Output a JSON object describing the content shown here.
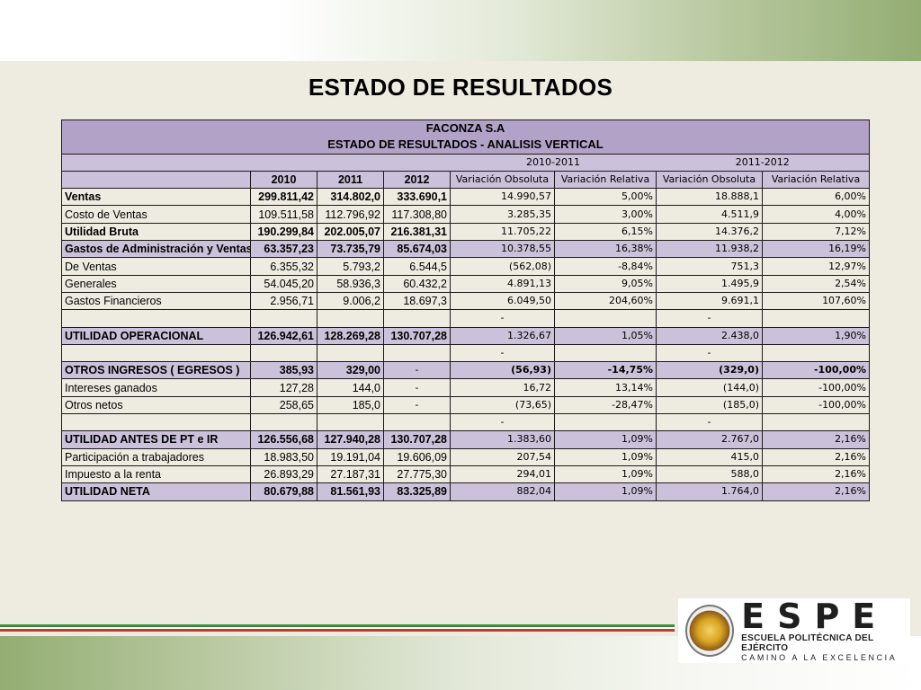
{
  "slide_title": "ESTADO DE RESULTADOS",
  "company": "FACONZA S.A",
  "report_title": "ESTADO DE RESULTADOS - ANALISIS VERTICAL",
  "periods": [
    "2010-2011",
    "2011-2012"
  ],
  "columns": {
    "years": [
      "2010",
      "2011",
      "2012"
    ],
    "var_abs": "Variación Obsoluta",
    "var_rel": "Variación Relativa"
  },
  "rows": [
    {
      "label": "Ventas",
      "v2010": "299.811,42",
      "v2011": "314.802,0",
      "v2012": "333.690,1",
      "abs1": "14.990,57",
      "rel1": "5,00%",
      "abs2": "18.888,1",
      "rel2": "6,00%"
    },
    {
      "label": "Costo de Ventas",
      "v2010": "109.511,58",
      "v2011": "112.796,92",
      "v2012": "117.308,80",
      "abs1": "3.285,35",
      "rel1": "3,00%",
      "abs2": "4.511,9",
      "rel2": "4,00%"
    },
    {
      "label": "Utilidad Bruta",
      "v2010": "190.299,84",
      "v2011": "202.005,07",
      "v2012": "216.381,31",
      "abs1": "11.705,22",
      "rel1": "6,15%",
      "abs2": "14.376,2",
      "rel2": "7,12%"
    },
    {
      "label": "Gastos de Administración y Ventas",
      "v2010": "63.357,23",
      "v2011": "73.735,79",
      "v2012": "85.674,03",
      "abs1": "10.378,55",
      "rel1": "16,38%",
      "abs2": "11.938,2",
      "rel2": "16,19%"
    },
    {
      "label": "De Ventas",
      "v2010": "6.355,32",
      "v2011": "5.793,2",
      "v2012": "6.544,5",
      "abs1": "(562,08)",
      "rel1": "-8,84%",
      "abs2": "751,3",
      "rel2": "12,97%"
    },
    {
      "label": "Generales",
      "v2010": "54.045,20",
      "v2011": "58.936,3",
      "v2012": "60.432,2",
      "abs1": "4.891,13",
      "rel1": "9,05%",
      "abs2": "1.495,9",
      "rel2": "2,54%"
    },
    {
      "label": "Gastos Financieros",
      "v2010": "2.956,71",
      "v2011": "9.006,2",
      "v2012": "18.697,3",
      "abs1": "6.049,50",
      "rel1": "204,60%",
      "abs2": "9.691,1",
      "rel2": "107,60%"
    },
    {
      "label": "",
      "v2010": "",
      "v2011": "",
      "v2012": "",
      "abs1": "-",
      "rel1": "",
      "abs2": "-",
      "rel2": ""
    },
    {
      "label": "UTILIDAD OPERACIONAL",
      "v2010": "126.942,61",
      "v2011": "128.269,28",
      "v2012": "130.707,28",
      "abs1": "1.326,67",
      "rel1": "1,05%",
      "abs2": "2.438,0",
      "rel2": "1,90%"
    },
    {
      "label": "",
      "v2010": "",
      "v2011": "",
      "v2012": "",
      "abs1": "-",
      "rel1": "",
      "abs2": "-",
      "rel2": ""
    },
    {
      "label": "OTROS INGRESOS ( EGRESOS )",
      "v2010": "385,93",
      "v2011": "329,00",
      "v2012": "-",
      "abs1": "(56,93)",
      "rel1": "-14,75%",
      "abs2": "(329,0)",
      "rel2": "-100,00%"
    },
    {
      "label": "Intereses ganados",
      "v2010": "127,28",
      "v2011": "144,0",
      "v2012": "-",
      "abs1": "16,72",
      "rel1": "13,14%",
      "abs2": "(144,0)",
      "rel2": "-100,00%"
    },
    {
      "label": "Otros netos",
      "v2010": "258,65",
      "v2011": "185,0",
      "v2012": "-",
      "abs1": "(73,65)",
      "rel1": "-28,47%",
      "abs2": "(185,0)",
      "rel2": "-100,00%"
    },
    {
      "label": "",
      "v2010": "",
      "v2011": "",
      "v2012": "",
      "abs1": "-",
      "rel1": "",
      "abs2": "-",
      "rel2": ""
    },
    {
      "label": "UTILIDAD ANTES DE PT e IR",
      "v2010": "126.556,68",
      "v2011": "127.940,28",
      "v2012": "130.707,28",
      "abs1": "1.383,60",
      "rel1": "1,09%",
      "abs2": "2.767,0",
      "rel2": "2,16%"
    },
    {
      "label": "Participación a trabajadores",
      "v2010": "18.983,50",
      "v2011": "19.191,04",
      "v2012": "19.606,09",
      "abs1": "207,54",
      "rel1": "1,09%",
      "abs2": "415,0",
      "rel2": "2,16%"
    },
    {
      "label": "Impuesto a la renta",
      "v2010": "26.893,29",
      "v2011": "27.187,31",
      "v2012": "27.775,30",
      "abs1": "294,01",
      "rel1": "1,09%",
      "abs2": "588,0",
      "rel2": "2,16%"
    },
    {
      "label": "UTILIDAD NETA",
      "v2010": "80.679,88",
      "v2011": "81.561,93",
      "v2012": "83.325,89",
      "abs1": "882,04",
      "rel1": "1,09%",
      "abs2": "1.764,0",
      "rel2": "2,16%"
    }
  ],
  "logo": {
    "brand": "ESPE",
    "line1": "ESCUELA POLITÉCNICA DEL EJÉRCITO",
    "line2": "CAMINO A LA EXCELENCIA"
  }
}
